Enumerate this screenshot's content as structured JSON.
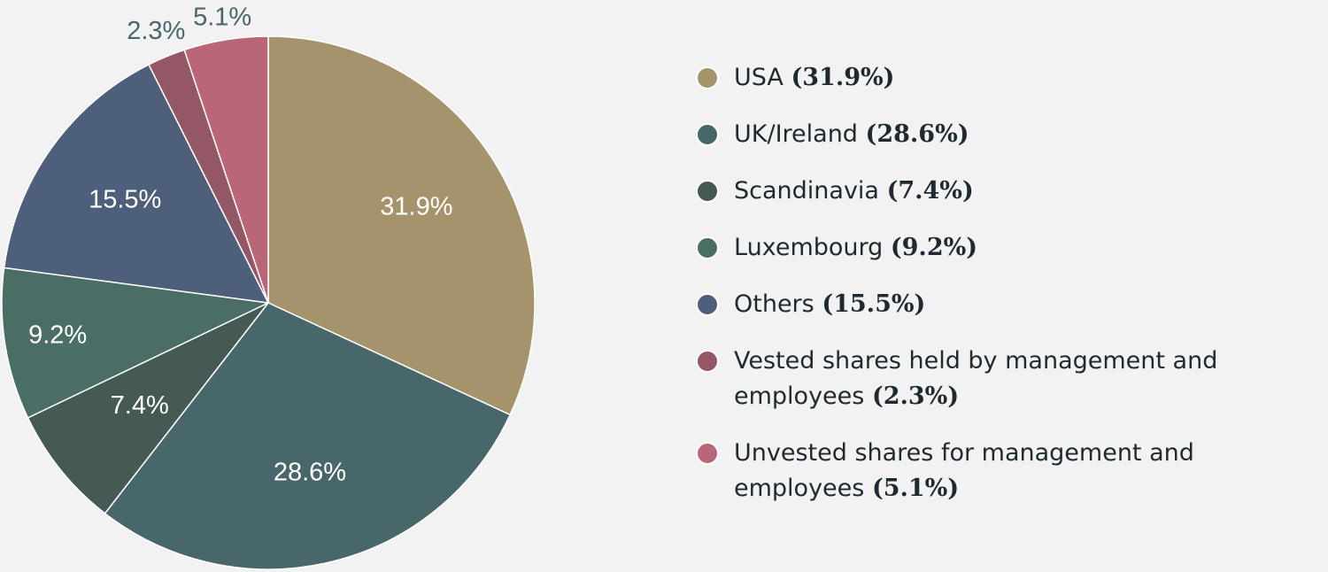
{
  "chart_data": {
    "type": "pie",
    "slices": [
      {
        "label": "USA",
        "value": 31.9,
        "value_label": "31.9%",
        "color": "#a5936c"
      },
      {
        "label": "UK/Ireland",
        "value": 28.6,
        "value_label": "28.6%",
        "color": "#48676b"
      },
      {
        "label": "Scandinavia",
        "value": 7.4,
        "value_label": "7.4%",
        "color": "#455a55"
      },
      {
        "label": "Luxembourg",
        "value": 9.2,
        "value_label": "9.2%",
        "color": "#4a6e66"
      },
      {
        "label": "Others",
        "value": 15.5,
        "value_label": "15.5%",
        "color": "#4e5f7c"
      },
      {
        "label": "Vested shares held by management and employees",
        "value": 2.3,
        "value_label": "2.3%",
        "color": "#955666"
      },
      {
        "label": "Unvested shares for management and employees",
        "value": 5.1,
        "value_label": "5.1%",
        "color": "#b86678"
      }
    ],
    "legend_position": "right",
    "start_angle": "12 o'clock",
    "direction": "clockwise"
  },
  "legend": {
    "items": [
      {
        "name": "USA",
        "pct": "(31.9%)"
      },
      {
        "name": "UK/Ireland",
        "pct": "(28.6%)"
      },
      {
        "name": "Scandinavia",
        "pct": "(7.4%)"
      },
      {
        "name": "Luxembourg",
        "pct": "(9.2%)"
      },
      {
        "name": "Others",
        "pct": "(15.5%)"
      },
      {
        "name": "Vested shares held by management and employees",
        "pct": "(2.3%)"
      },
      {
        "name": "Unvested shares for management and employees",
        "pct": "(5.1%)"
      }
    ]
  },
  "colors": {
    "background": "#f2f2f2",
    "label_inside": "#ffffff",
    "label_outside": "#48676b",
    "legend_text": "#1e2a30"
  }
}
